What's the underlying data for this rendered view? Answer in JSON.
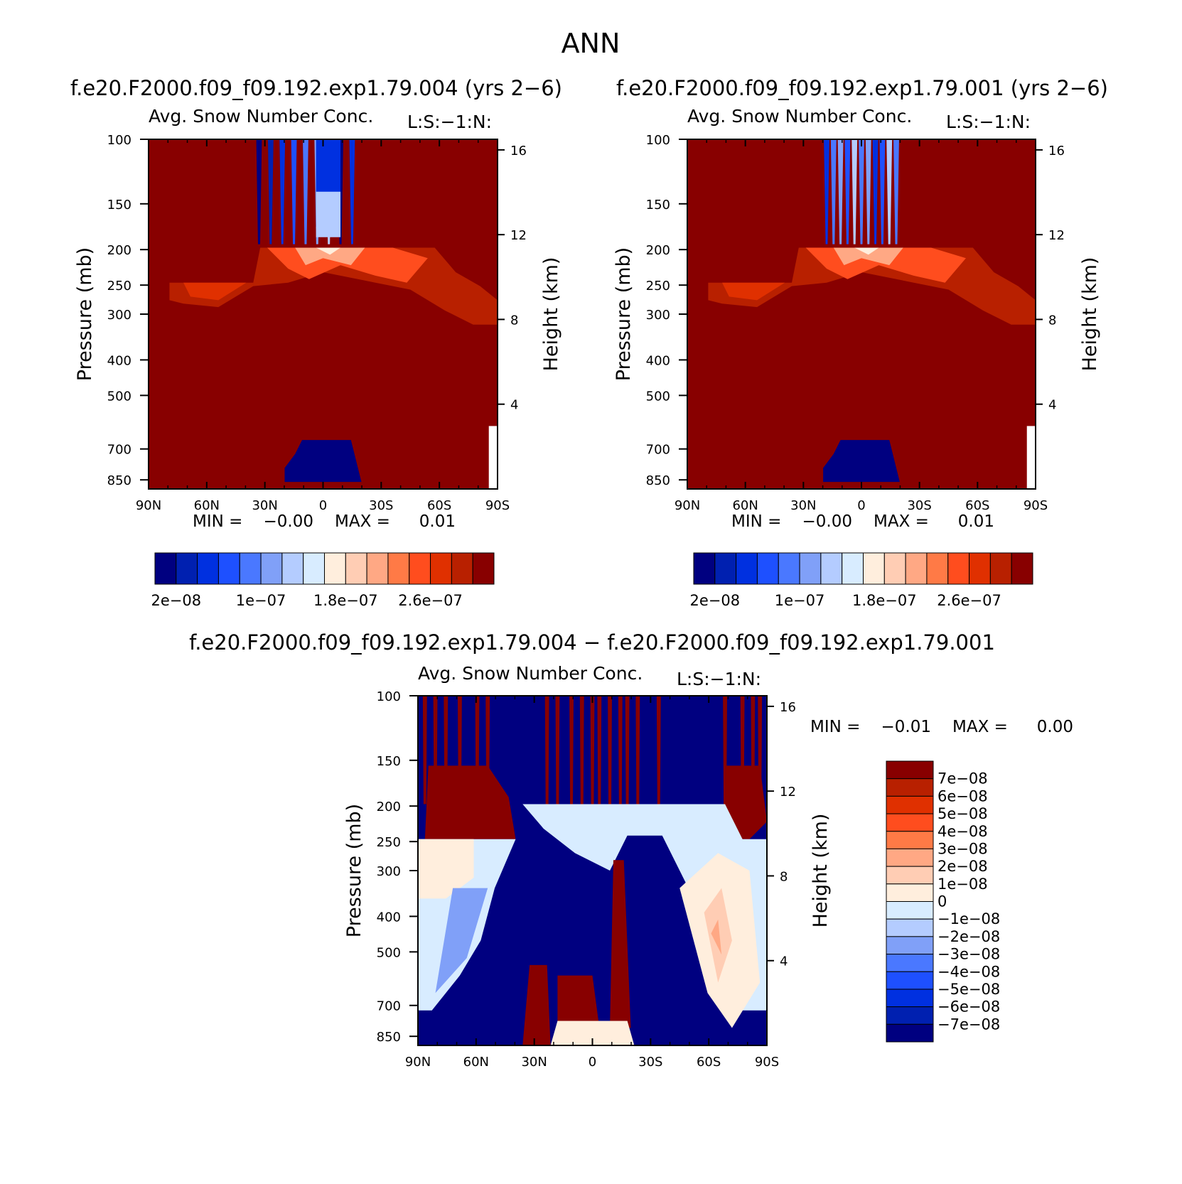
{
  "figure": {
    "title": "ANN"
  },
  "chart_data": [
    {
      "type": "heatmap",
      "panel": "top-left",
      "case_title": "f.e20.F2000.f09_f09.192.exp1.79.004 (yrs 2−6)",
      "title": "Avg. Snow Number Conc.",
      "units_label": "L:S:−1:N:",
      "xlabel": "",
      "ylabel": "Pressure (mb)",
      "y2label": "Height (km)",
      "x_ticks": [
        "90N",
        "60N",
        "30N",
        "0",
        "30S",
        "60S",
        "90S"
      ],
      "x_tick_values": [
        90,
        60,
        30,
        0,
        -30,
        -60,
        -90
      ],
      "y_ticks": [
        "100",
        "150",
        "200",
        "250",
        "300",
        "400",
        "500",
        "700",
        "850"
      ],
      "y_tick_values": [
        100,
        150,
        200,
        250,
        300,
        400,
        500,
        700,
        850
      ],
      "y2_ticks": [
        "16",
        "12",
        "8",
        "4"
      ],
      "y2_tick_values": [
        16,
        12,
        8,
        4
      ],
      "ylim": [
        100,
        900
      ],
      "y_scale": "log",
      "stats": {
        "min_label": "MIN =",
        "min": "−0.00",
        "max_label": "MAX =",
        "max": "0.01"
      },
      "colorbar": {
        "orientation": "horizontal",
        "colors": [
          "#000080",
          "#0020b0",
          "#0030e0",
          "#1e50ff",
          "#4a78ff",
          "#80a0f8",
          "#b4ccff",
          "#d8ecff",
          "#ffeedd",
          "#ffcdb4",
          "#ffa884",
          "#ff7a46",
          "#ff4d1e",
          "#e03000",
          "#b82000",
          "#880000"
        ],
        "labels": [
          "2e−08",
          "1e−07",
          "1.8e−07",
          "2.6e−07"
        ],
        "label_positions": [
          1,
          5,
          9,
          13
        ]
      }
    },
    {
      "type": "heatmap",
      "panel": "top-right",
      "case_title": "f.e20.F2000.f09_f09.192.exp1.79.001 (yrs 2−6)",
      "title": "Avg. Snow Number Conc.",
      "units_label": "L:S:−1:N:",
      "xlabel": "",
      "ylabel": "Pressure (mb)",
      "y2label": "Height (km)",
      "x_ticks": [
        "90N",
        "60N",
        "30N",
        "0",
        "30S",
        "60S",
        "90S"
      ],
      "x_tick_values": [
        90,
        60,
        30,
        0,
        -30,
        -60,
        -90
      ],
      "y_ticks": [
        "100",
        "150",
        "200",
        "250",
        "300",
        "400",
        "500",
        "700",
        "850"
      ],
      "y_tick_values": [
        100,
        150,
        200,
        250,
        300,
        400,
        500,
        700,
        850
      ],
      "y2_ticks": [
        "16",
        "12",
        "8",
        "4"
      ],
      "y2_tick_values": [
        16,
        12,
        8,
        4
      ],
      "ylim": [
        100,
        900
      ],
      "y_scale": "log",
      "stats": {
        "min_label": "MIN =",
        "min": "−0.00",
        "max_label": "MAX =",
        "max": "0.01"
      },
      "colorbar": {
        "orientation": "horizontal",
        "colors": [
          "#000080",
          "#0020b0",
          "#0030e0",
          "#1e50ff",
          "#4a78ff",
          "#80a0f8",
          "#b4ccff",
          "#d8ecff",
          "#ffeedd",
          "#ffcdb4",
          "#ffa884",
          "#ff7a46",
          "#ff4d1e",
          "#e03000",
          "#b82000",
          "#880000"
        ],
        "labels": [
          "2e−08",
          "1e−07",
          "1.8e−07",
          "2.6e−07"
        ],
        "label_positions": [
          1,
          5,
          9,
          13
        ]
      }
    },
    {
      "type": "heatmap",
      "panel": "bottom",
      "case_title": "f.e20.F2000.f09_f09.192.exp1.79.004 − f.e20.F2000.f09_f09.192.exp1.79.001",
      "title": "Avg. Snow Number Conc.",
      "units_label": "L:S:−1:N:",
      "xlabel": "",
      "ylabel": "Pressure (mb)",
      "y2label": "Height (km)",
      "x_ticks": [
        "90N",
        "60N",
        "30N",
        "0",
        "30S",
        "60S",
        "90S"
      ],
      "x_tick_values": [
        90,
        60,
        30,
        0,
        -30,
        -60,
        -90
      ],
      "y_ticks": [
        "100",
        "150",
        "200",
        "250",
        "300",
        "400",
        "500",
        "700",
        "850"
      ],
      "y_tick_values": [
        100,
        150,
        200,
        250,
        300,
        400,
        500,
        700,
        850
      ],
      "y2_ticks": [
        "16",
        "12",
        "8",
        "4"
      ],
      "y2_tick_values": [
        16,
        12,
        8,
        4
      ],
      "ylim": [
        100,
        900
      ],
      "y_scale": "log",
      "stats": {
        "min_label": "MIN =",
        "min": "−0.01",
        "max_label": "MAX =",
        "max": "0.00"
      },
      "colorbar": {
        "orientation": "vertical",
        "colors": [
          "#880000",
          "#b82000",
          "#e03000",
          "#ff4d1e",
          "#ff7a46",
          "#ffa884",
          "#ffcdb4",
          "#ffeedd",
          "#d8ecff",
          "#b4ccff",
          "#80a0f8",
          "#4a78ff",
          "#1e50ff",
          "#0030e0",
          "#0020b0",
          "#000080"
        ],
        "labels": [
          "7e−08",
          "6e−08",
          "5e−08",
          "4e−08",
          "3e−08",
          "2e−08",
          "1e−08",
          "0",
          "−1e−08",
          "−2e−08",
          "−3e−08",
          "−4e−08",
          "−5e−08",
          "−6e−08",
          "−7e−08"
        ]
      }
    }
  ]
}
